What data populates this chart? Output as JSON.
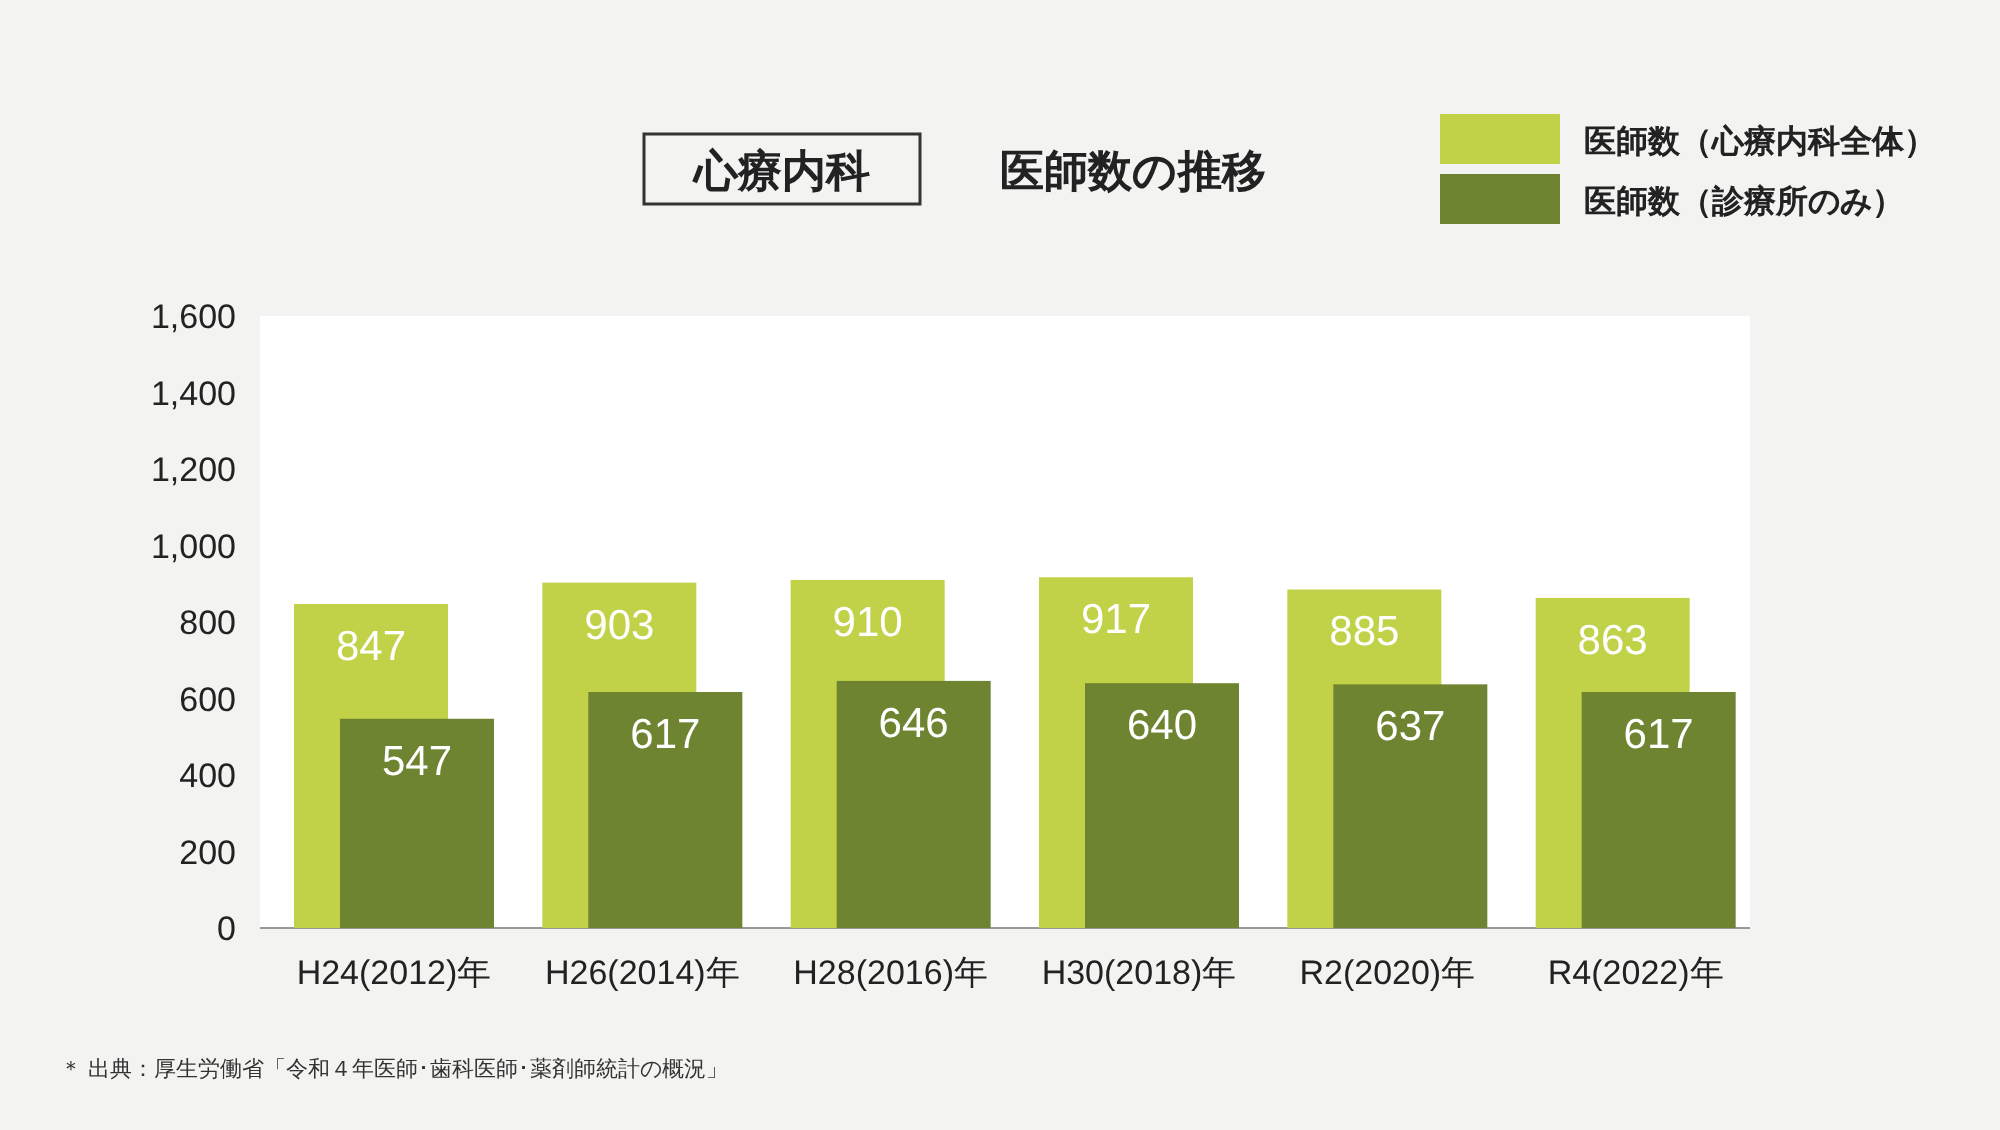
{
  "chart_data": {
    "type": "bar",
    "title": "心療内科",
    "subtitle": "医師数の推移",
    "categories": [
      "H24(2012)年",
      "H26(2014)年",
      "H28(2016)年",
      "H30(2018)年",
      "R2(2020)年",
      "R4(2022)年"
    ],
    "series": [
      {
        "name": "医師数（心療内科全体）",
        "color": "#c2d248",
        "values": [
          847,
          903,
          910,
          917,
          885,
          863
        ]
      },
      {
        "name": "医師数（診療所のみ）",
        "color": "#6e8430",
        "values": [
          547,
          617,
          646,
          640,
          637,
          617
        ]
      }
    ],
    "ylim": [
      0,
      1600
    ],
    "yticks": [
      0,
      200,
      400,
      600,
      800,
      {
        "value": 1000,
        "label": "1,000"
      },
      {
        "value": 1200,
        "label": "1,200"
      },
      {
        "value": 1400,
        "label": "1,400"
      },
      {
        "value": 1600,
        "label": "1,600"
      }
    ],
    "data_labels": true,
    "legend": "top right",
    "annotations": [
      "＊ 出典：厚生労働省「令和４年医師･歯科医師･薬剤師統計の概況」"
    ]
  }
}
